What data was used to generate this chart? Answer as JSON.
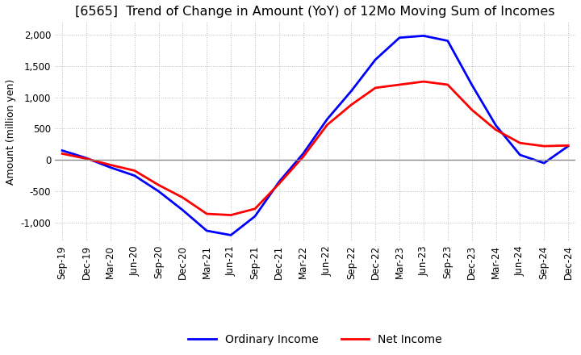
{
  "title": "[6565]  Trend of Change in Amount (YoY) of 12Mo Moving Sum of Incomes",
  "ylabel": "Amount (million yen)",
  "ylim": [
    -1300,
    2200
  ],
  "yticks": [
    -1000,
    -500,
    0,
    500,
    1000,
    1500,
    2000
  ],
  "x_labels": [
    "Sep-19",
    "Dec-19",
    "Mar-20",
    "Jun-20",
    "Sep-20",
    "Dec-20",
    "Mar-21",
    "Jun-21",
    "Sep-21",
    "Dec-21",
    "Mar-22",
    "Jun-22",
    "Sep-22",
    "Dec-22",
    "Mar-23",
    "Jun-23",
    "Sep-23",
    "Dec-23",
    "Mar-24",
    "Jun-24",
    "Sep-24",
    "Dec-24"
  ],
  "ordinary_income": [
    150,
    30,
    -120,
    -250,
    -500,
    -800,
    -1130,
    -1200,
    -900,
    -350,
    100,
    650,
    1100,
    1600,
    1950,
    1980,
    1900,
    1200,
    550,
    80,
    -50,
    220
  ],
  "net_income": [
    100,
    20,
    -80,
    -170,
    -400,
    -600,
    -860,
    -880,
    -780,
    -380,
    50,
    560,
    880,
    1150,
    1200,
    1250,
    1200,
    800,
    480,
    270,
    220,
    230
  ],
  "ordinary_color": "#0000ff",
  "net_color": "#ff0000",
  "background_color": "#ffffff",
  "grid_color": "#bbbbbb",
  "zero_line_color": "#888888",
  "title_fontsize": 11.5,
  "label_fontsize": 9,
  "tick_fontsize": 8.5,
  "legend_fontsize": 10
}
